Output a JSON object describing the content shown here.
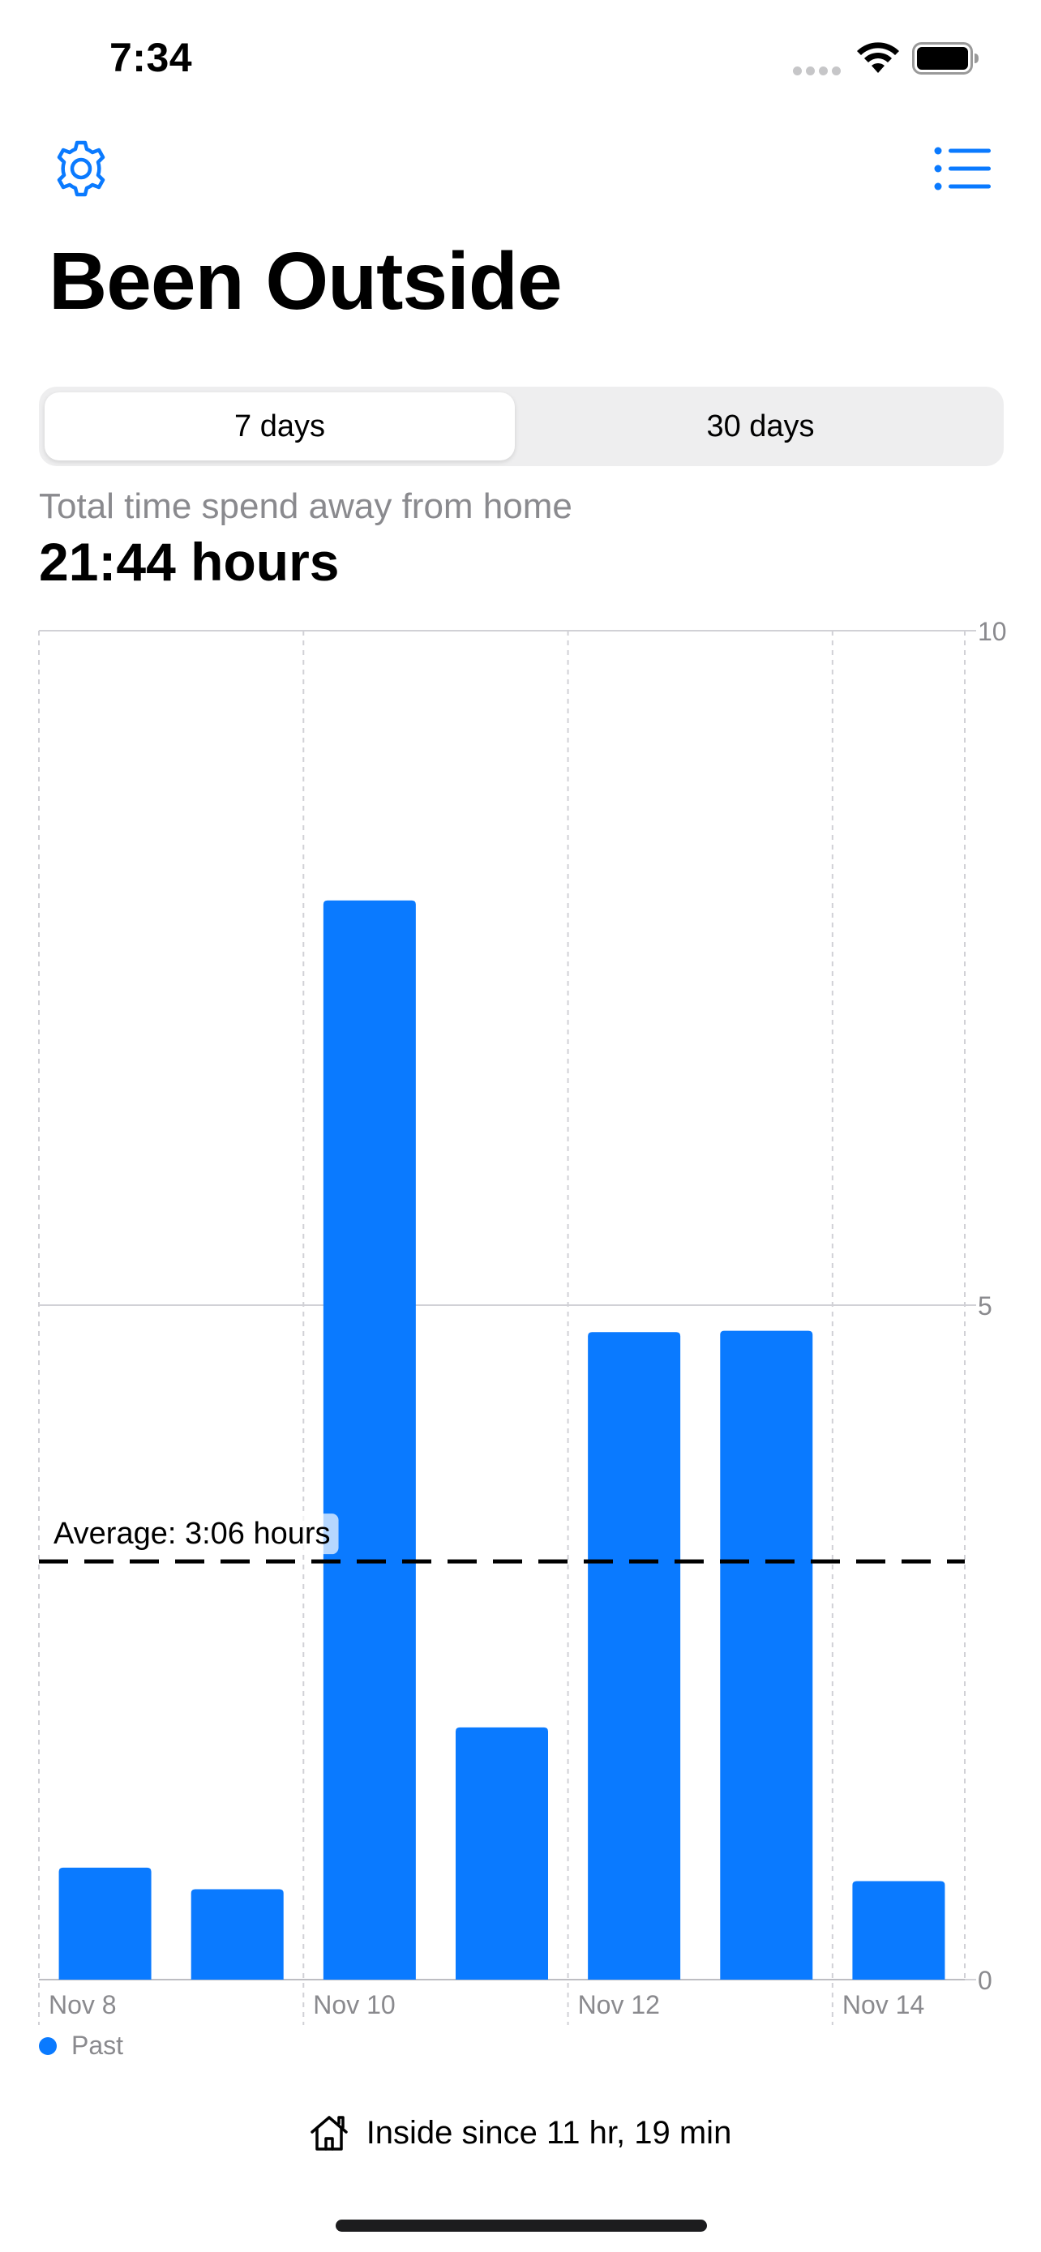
{
  "status_bar": {
    "time": "7:34"
  },
  "nav": {
    "settings_icon": "gear-icon",
    "list_icon": "list-icon"
  },
  "page": {
    "title": "Been Outside"
  },
  "segmented_control": {
    "options": [
      "7 days",
      "30 days"
    ],
    "selected": "7 days"
  },
  "summary": {
    "label": "Total time spend away from home",
    "value": "21:44 hours"
  },
  "chart_data": {
    "type": "bar",
    "categories": [
      "Nov 8",
      "Nov 9",
      "Nov 10",
      "Nov 11",
      "Nov 12",
      "Nov 13",
      "Nov 14"
    ],
    "values": [
      0.83,
      0.67,
      8.0,
      1.87,
      4.8,
      4.81,
      0.73
    ],
    "x_tick_labels": [
      "Nov 8",
      "Nov 10",
      "Nov 12",
      "Nov 14"
    ],
    "y_ticks": [
      "0",
      "5",
      "10"
    ],
    "ylim": [
      0,
      10
    ],
    "average": {
      "value": 3.1,
      "label": "Average: 3:06 hours"
    },
    "legend": {
      "position": "bottom-left",
      "entries": [
        "Past"
      ]
    },
    "grid": true,
    "colors": {
      "bar": "#0a7aff",
      "average_line": "#000000",
      "grid": "#d1d1d6"
    }
  },
  "footer": {
    "icon": "home-icon",
    "text": "Inside since 11 hr, 19 min"
  }
}
